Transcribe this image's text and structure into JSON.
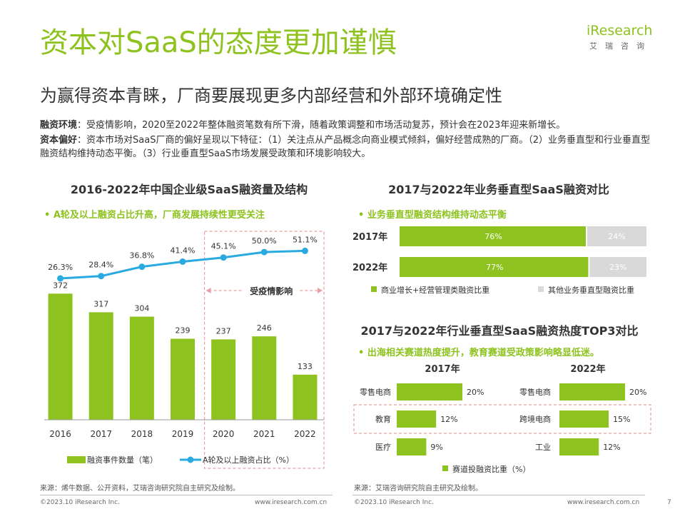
{
  "header": {
    "title": "资本对SaaS的态度更加谨慎",
    "subtitle": "为赢得资本青睐，厂商要展现更多内部经营和外部环境确定性",
    "logo_word": "iResearch",
    "logo_sub": "艾瑞咨询"
  },
  "intro": {
    "line1_label": "融资环境",
    "line1_text": "：受疫情影响，2020至2022年整体融资笔数有所下滑，随着政策调整和市场活动复苏，预计会在2023年迎来新增长。",
    "line2_label": "资本偏好",
    "line2_text": "：资本市场对SaaS厂商的偏好呈现以下特征：（1）关注点从产品概念向商业模式倾斜，偏好经营成熟的厂商。（2）业务垂直型和行业垂直型融资结构维持动态平衡。（3）行业垂直型SaaS市场发展受政策和环境影响较大。"
  },
  "colors": {
    "brand_green": "#8dc21f",
    "line_blue": "#29abe2",
    "grey_bar": "#d9d9d9",
    "dashed_red": "#e8a0a0"
  },
  "left_panel": {
    "title": "2016-2022年中国企业级SaaS融资量及结构",
    "bullet": "•  A轮及以上融资占比升高，厂商发展持续性更受关注",
    "annotation": "受疫情影响",
    "legend_bar": "融资事件数量（笔）",
    "legend_line": "A轮及以上融资占比（%）",
    "source": "来源：烯牛数据、公开资料，艾瑞咨询研究院自主研究及绘制。"
  },
  "right_top": {
    "title": "2017与2022年业务垂直型SaaS融资对比",
    "bullet": "•  业务垂直型融资结构维持动态平衡",
    "legend_a": "商业增长+经营管理类融资比重",
    "legend_b": "其他业务垂直型融资比重"
  },
  "right_bottom": {
    "title": "2017与2022年行业垂直型SaaS融资热度TOP3对比",
    "bullet": "•  出海相关赛道热度提升，教育赛道受政策影响略显低迷。",
    "col_2017": "2017年",
    "col_2022": "2022年",
    "legend": "赛道投融资比重（%）",
    "source": "来源：艾瑞咨询研究院自主研究及绘制。"
  },
  "chart_data": [
    {
      "type": "bar",
      "title": "2016-2022年中国企业级SaaS融资量及结构",
      "categories": [
        "2016",
        "2017",
        "2018",
        "2019",
        "2020",
        "2021",
        "2022"
      ],
      "series": [
        {
          "name": "融资事件数量（笔）",
          "type": "bar",
          "values": [
            372,
            317,
            304,
            239,
            237,
            246,
            133
          ],
          "labels": [
            "372",
            "317",
            "304",
            "239",
            "237",
            "246",
            "133"
          ]
        },
        {
          "name": "A轮及以上融资占比（%）",
          "type": "line",
          "values": [
            26.3,
            28.4,
            36.8,
            41.4,
            45.1,
            50.0,
            51.1
          ],
          "labels": [
            "26.3%",
            "28.4%",
            "36.8%",
            "41.4%",
            "45.1%",
            "50.0%",
            "51.1%"
          ]
        }
      ]
    },
    {
      "type": "bar",
      "stacked": true,
      "orientation": "horizontal",
      "title": "2017与2022年业务垂直型SaaS融资对比",
      "categories": [
        "2017年",
        "2022年"
      ],
      "series": [
        {
          "name": "商业增长+经营管理类融资比重",
          "values": [
            76,
            77
          ],
          "labels": [
            "76%",
            "77%"
          ]
        },
        {
          "name": "其他业务垂直型融资比重",
          "values": [
            24,
            23
          ],
          "labels": [
            "24%",
            "23%"
          ]
        }
      ]
    },
    {
      "type": "bar",
      "orientation": "horizontal",
      "title": "2017与2022年行业垂直型SaaS融资热度TOP3对比",
      "groups": [
        {
          "name": "2017年",
          "categories": [
            "零售电商",
            "教育",
            "医疗"
          ],
          "values": [
            20,
            12,
            9
          ],
          "labels": [
            "20%",
            "12%",
            "9%"
          ]
        },
        {
          "name": "2022年",
          "categories": [
            "零售电商",
            "跨境电商",
            "工业"
          ],
          "values": [
            20,
            15,
            12
          ],
          "labels": [
            "20%",
            "15%",
            "12%"
          ]
        }
      ]
    }
  ],
  "footer": {
    "copyright": "©2023.10 iResearch Inc.",
    "url": "www.iresearch.com.cn",
    "page": "7"
  }
}
